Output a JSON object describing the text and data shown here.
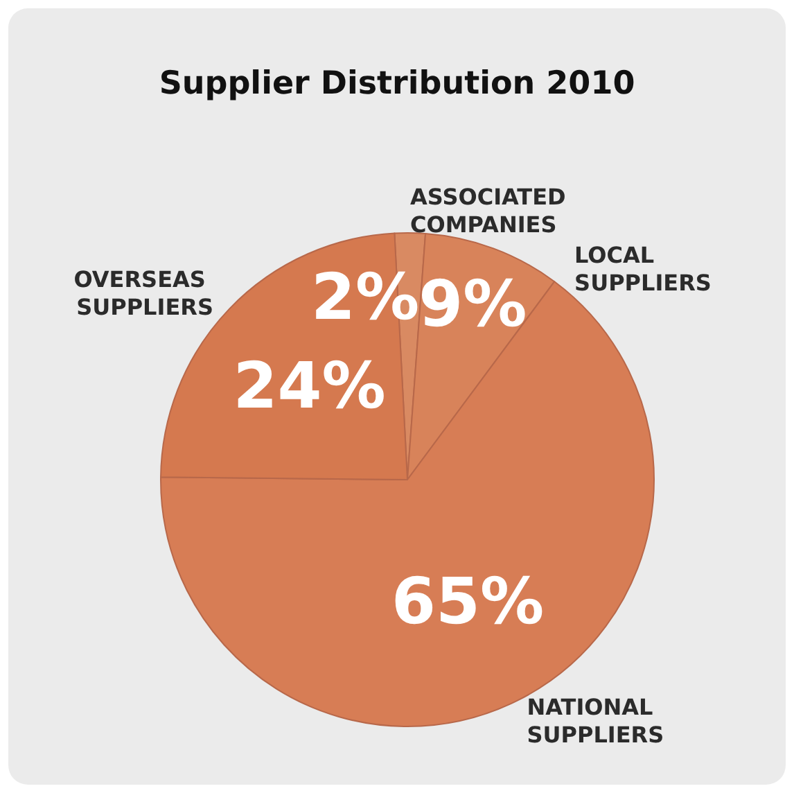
{
  "chart_data": {
    "type": "pie",
    "title": "Supplier Distribution 2010",
    "categories": [
      "ASSOCIATED COMPANIES",
      "LOCAL SUPPLIERS",
      "NATIONAL SUPPLIERS",
      "OVERSEAS SUPPLIERS"
    ],
    "values": [
      2,
      9,
      65,
      24
    ],
    "colors": [
      "#d98a62",
      "#d8835a",
      "#d77d55",
      "#d5794f"
    ],
    "value_labels": [
      "2%",
      "9%",
      "65%",
      "24%"
    ]
  }
}
